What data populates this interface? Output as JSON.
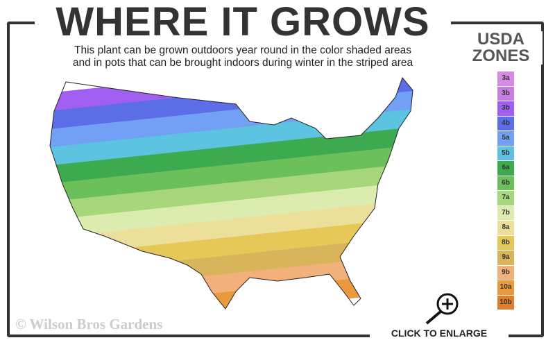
{
  "title": "WHERE IT GROWS",
  "subtitle_line1": "This plant can be grown outdoors year round in the color shaded areas",
  "subtitle_line2": "and in pots that can be brought indoors during winter in the striped area",
  "legend": {
    "title_line1": "USDA",
    "title_line2": "ZONES",
    "zones": [
      {
        "label": "3a",
        "color": "#d98ae6"
      },
      {
        "label": "3b",
        "color": "#c67ee0"
      },
      {
        "label": "3b",
        "color": "#a05ff0"
      },
      {
        "label": "4b",
        "color": "#5b6ee8"
      },
      {
        "label": "5a",
        "color": "#72a0f4"
      },
      {
        "label": "5b",
        "color": "#5cc4e0"
      },
      {
        "label": "6a",
        "color": "#3daa50"
      },
      {
        "label": "6b",
        "color": "#6cc05c"
      },
      {
        "label": "7a",
        "color": "#a7d77a"
      },
      {
        "label": "7b",
        "color": "#dcecae"
      },
      {
        "label": "8a",
        "color": "#ecdf9a"
      },
      {
        "label": "8b",
        "color": "#e6c858"
      },
      {
        "label": "9a",
        "color": "#d8b45a"
      },
      {
        "label": "9b",
        "color": "#f2b07a"
      },
      {
        "label": "10a",
        "color": "#ea9a3c"
      },
      {
        "label": "10b",
        "color": "#e07e30"
      }
    ]
  },
  "watermark": "© Wilson Bros Gardens",
  "enlarge_label": "CLICK TO ENLARGE"
}
